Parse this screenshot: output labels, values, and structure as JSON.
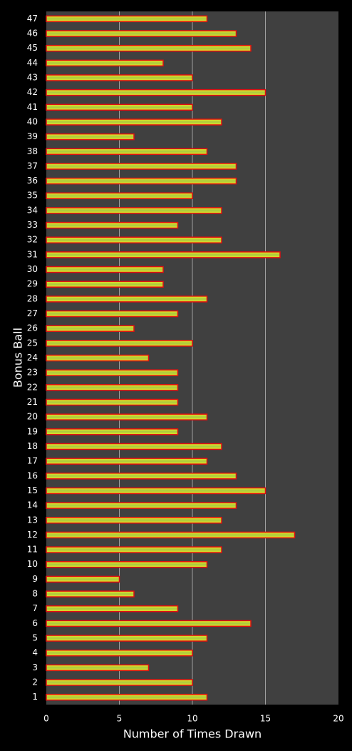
{
  "chart_data": {
    "type": "barh",
    "x_label": "Number of Times Drawn",
    "y_label": "Bonus Ball",
    "categories": [
      "1",
      "2",
      "3",
      "4",
      "5",
      "6",
      "7",
      "8",
      "9",
      "10",
      "11",
      "12",
      "13",
      "14",
      "15",
      "16",
      "17",
      "18",
      "19",
      "20",
      "21",
      "22",
      "23",
      "24",
      "25",
      "26",
      "27",
      "28",
      "29",
      "30",
      "31",
      "32",
      "33",
      "34",
      "35",
      "36",
      "37",
      "38",
      "39",
      "40",
      "41",
      "42",
      "43",
      "44",
      "45",
      "46",
      "47"
    ],
    "values": [
      11,
      10,
      7,
      10,
      11,
      14,
      9,
      6,
      5,
      11,
      12,
      17,
      12,
      13,
      15,
      13,
      11,
      12,
      9,
      11,
      9,
      9,
      9,
      7,
      10,
      6,
      9,
      11,
      8,
      8,
      16,
      12,
      9,
      12,
      10,
      13,
      13,
      11,
      6,
      12,
      10,
      15,
      10,
      8,
      14,
      13,
      11
    ],
    "color": "#b8d23a",
    "edge_color": "#e01010",
    "xlim": [
      0,
      20
    ],
    "xticks": [
      0,
      5,
      10,
      15,
      20
    ],
    "grid": true
  }
}
